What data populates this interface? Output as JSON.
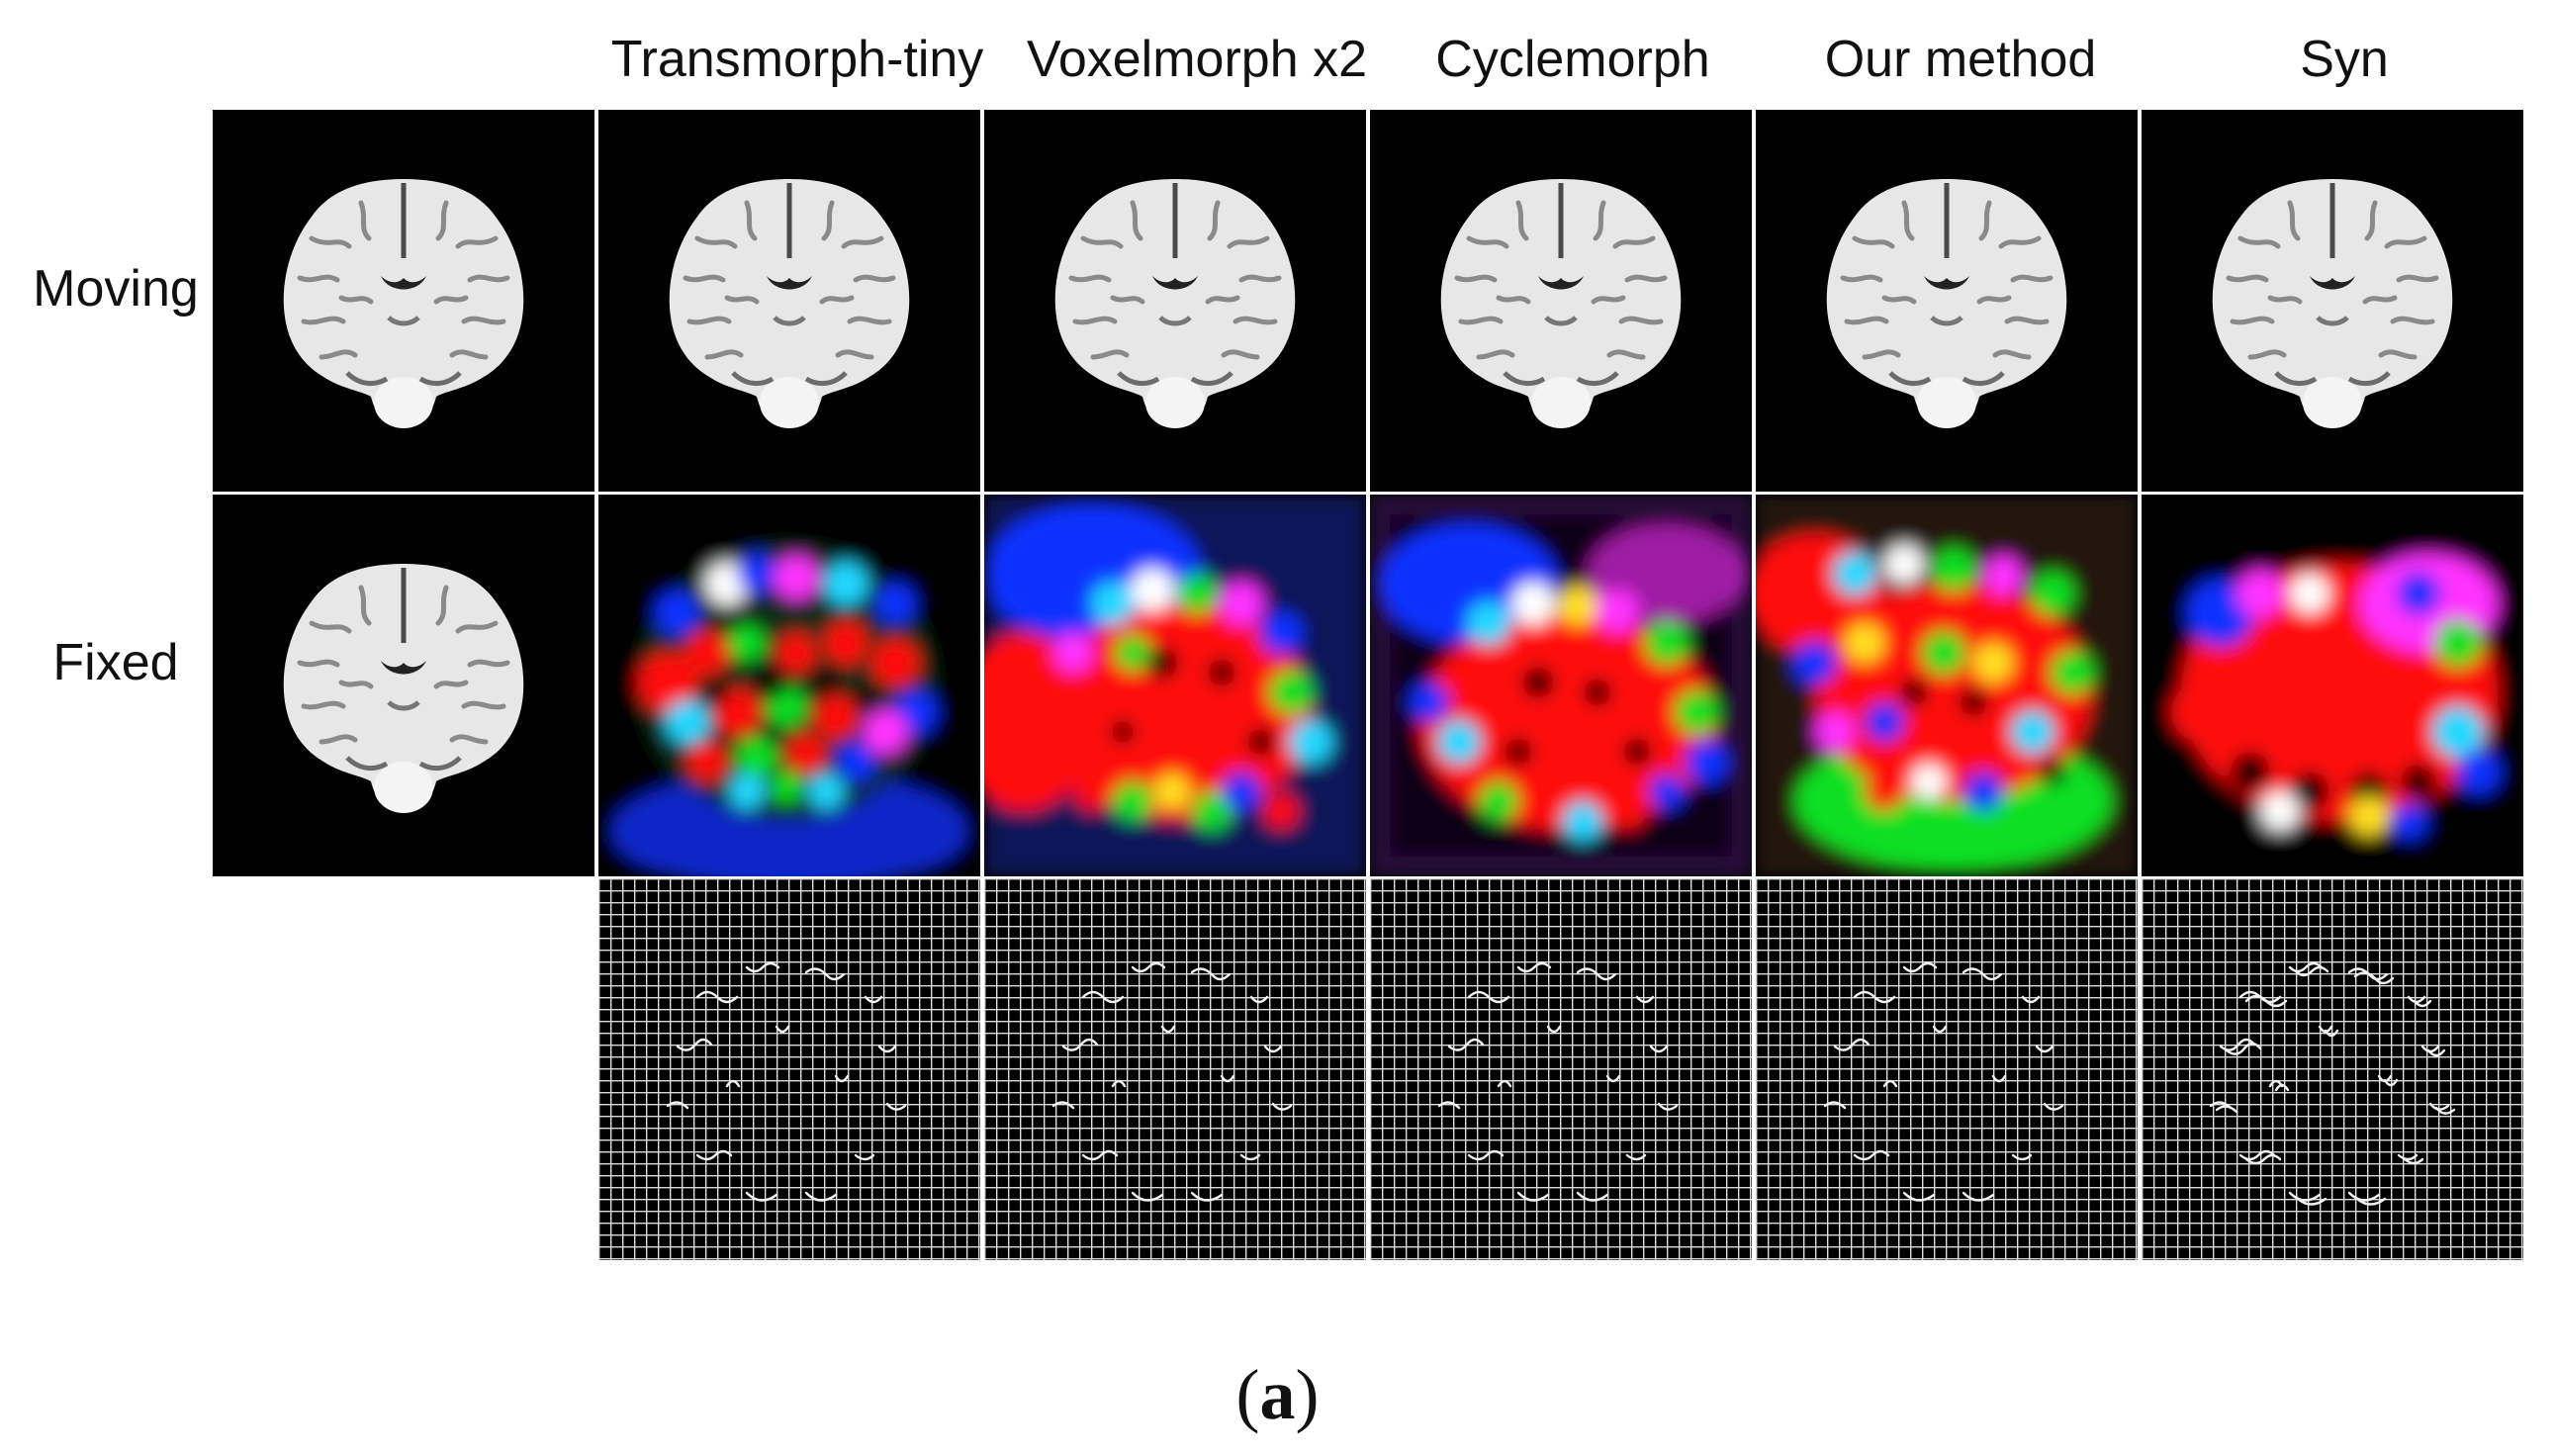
{
  "columns": [
    {
      "key": "moving_fixed",
      "label": ""
    },
    {
      "key": "transmorph_tiny",
      "label": "Transmorph-tiny"
    },
    {
      "key": "voxelmorph_x2",
      "label": "Voxelmorph x2"
    },
    {
      "key": "cyclemorph",
      "label": "Cyclemorph"
    },
    {
      "key": "our_method",
      "label": "Our method"
    },
    {
      "key": "syn",
      "label": "Syn"
    }
  ],
  "rows": [
    {
      "key": "moving",
      "label": "Moving"
    },
    {
      "key": "fixed",
      "label": "Fixed"
    },
    {
      "key": "grid",
      "label": ""
    }
  ],
  "caption": {
    "open": "(",
    "letter": "a",
    "close": ")"
  },
  "colors": {
    "background": "#ffffff",
    "panel": "#000000",
    "flow_red": "#ff1010",
    "flow_green": "#10e020",
    "flow_blue": "#1030ff",
    "flow_cyan": "#20d8ff",
    "flow_magenta": "#ff30ff",
    "flow_yellow": "#ffe020"
  }
}
